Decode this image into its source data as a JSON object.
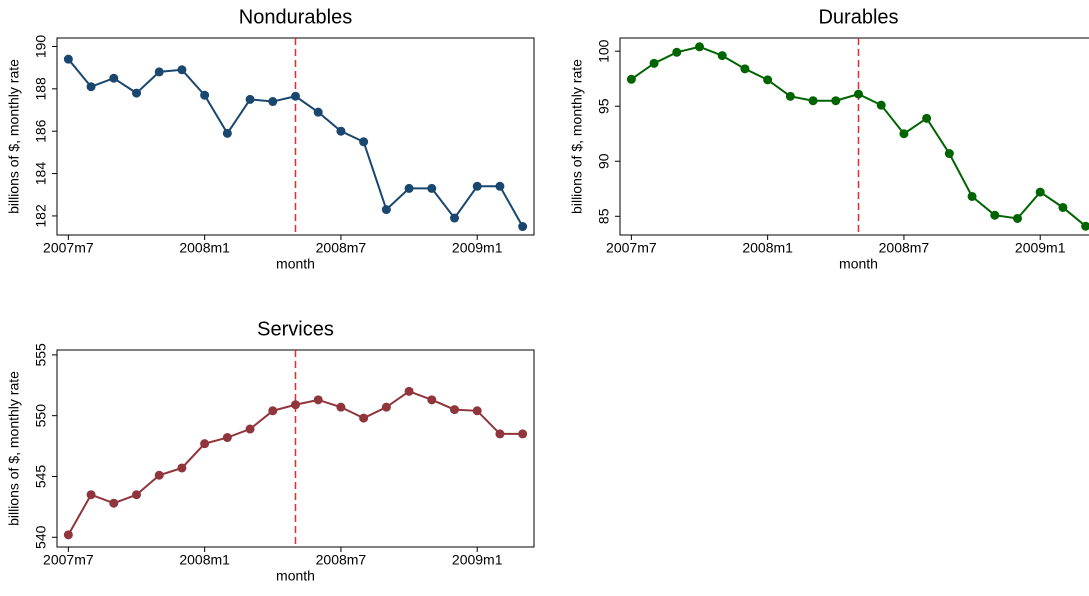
{
  "chart_data": [
    {
      "type": "line",
      "title": "Nondurables",
      "x_label": "month",
      "y_label": "billions of $, monthly rate",
      "x": [
        "2007m7",
        "2007m8",
        "2007m9",
        "2007m10",
        "2007m11",
        "2007m12",
        "2008m1",
        "2008m2",
        "2008m3",
        "2008m4",
        "2008m5",
        "2008m6",
        "2008m7",
        "2008m8",
        "2008m9",
        "2008m10",
        "2008m11",
        "2008m12",
        "2009m1",
        "2009m2",
        "2009m3"
      ],
      "series": [
        {
          "color": "#1a476f",
          "values": [
            189.4,
            188.1,
            188.5,
            187.8,
            188.8,
            188.9,
            187.7,
            185.9,
            187.5,
            187.4,
            187.65,
            186.9,
            186.0,
            185.5,
            182.3,
            183.3,
            183.3,
            181.9,
            183.4,
            183.4,
            181.5
          ]
        }
      ],
      "xticks": [
        "2007m7",
        "2008m1",
        "2008m7",
        "2009m1"
      ],
      "ylim": [
        181.1,
        190.4
      ],
      "yticks": [
        182,
        184,
        186,
        188,
        190
      ],
      "vline": "2008m5",
      "vline_color": "#e8282b"
    },
    {
      "type": "line",
      "title": "Durables",
      "x_label": "month",
      "y_label": "billions of $, monthly rate",
      "x": [
        "2007m7",
        "2007m8",
        "2007m9",
        "2007m10",
        "2007m11",
        "2007m12",
        "2008m1",
        "2008m2",
        "2008m3",
        "2008m4",
        "2008m5",
        "2008m6",
        "2008m7",
        "2008m8",
        "2008m9",
        "2008m10",
        "2008m11",
        "2008m12",
        "2009m1",
        "2009m2",
        "2009m3"
      ],
      "series": [
        {
          "color": "#006400",
          "values": [
            97.45,
            98.9,
            99.9,
            100.4,
            99.6,
            98.4,
            97.4,
            95.9,
            95.5,
            95.5,
            96.1,
            95.1,
            92.5,
            93.9,
            90.7,
            86.8,
            85.1,
            84.8,
            87.2,
            85.8,
            84.1
          ]
        }
      ],
      "xticks": [
        "2007m7",
        "2008m1",
        "2008m7",
        "2009m1"
      ],
      "ylim": [
        83.3,
        101.2
      ],
      "yticks": [
        85,
        90,
        95,
        100
      ],
      "vline": "2008m5",
      "vline_color": "#e8282b"
    },
    {
      "type": "line",
      "title": "Services",
      "x_label": "month",
      "y_label": "billions of $, monthly rate",
      "x": [
        "2007m7",
        "2007m8",
        "2007m9",
        "2007m10",
        "2007m11",
        "2007m12",
        "2008m1",
        "2008m2",
        "2008m3",
        "2008m4",
        "2008m5",
        "2008m6",
        "2008m7",
        "2008m8",
        "2008m9",
        "2008m10",
        "2008m11",
        "2008m12",
        "2009m1",
        "2009m2",
        "2009m3"
      ],
      "series": [
        {
          "color": "#90353b",
          "values": [
            540.2,
            543.5,
            542.8,
            543.5,
            545.1,
            545.7,
            547.7,
            548.2,
            548.9,
            550.4,
            550.9,
            551.3,
            550.7,
            549.8,
            550.7,
            552.0,
            551.3,
            550.5,
            550.4,
            548.5,
            548.5
          ]
        }
      ],
      "xticks": [
        "2007m7",
        "2008m1",
        "2008m7",
        "2009m1"
      ],
      "ylim": [
        539.2,
        555.4
      ],
      "yticks": [
        540,
        545,
        550,
        555
      ],
      "vline": "2008m5",
      "vline_color": "#e8282b"
    }
  ]
}
